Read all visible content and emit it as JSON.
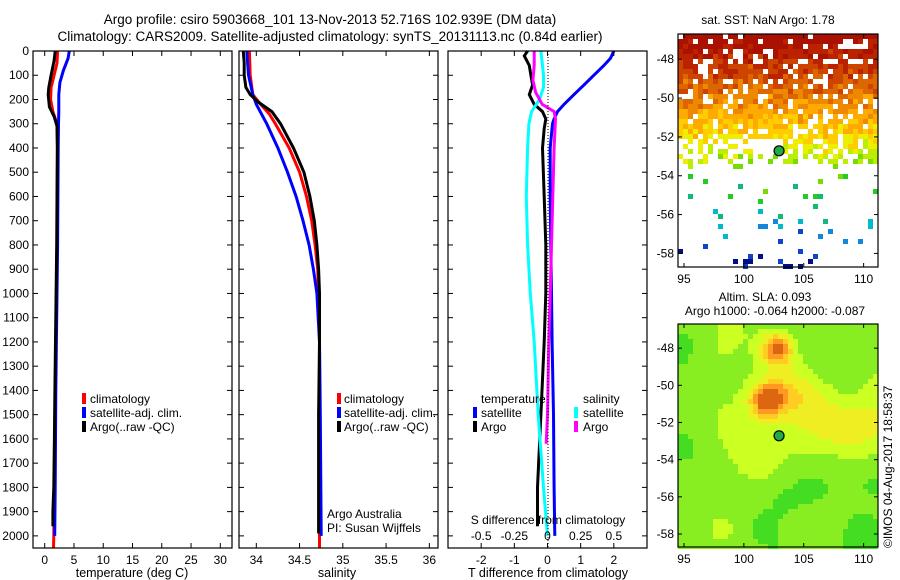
{
  "header": {
    "title_line1": "Argo profile: csiro 5903668_101 13-Nov-2013 52.716S 102.939E (DM data)",
    "title_line2": "Climatology: CARS2009. Satellite-adjusted climatology: synTS_20131113.nc (0.84d earlier)"
  },
  "colors": {
    "climatology": "#ff0000",
    "satellite_adj": "#0000ff",
    "argo": "#000000",
    "t_satellite": "#0000ff",
    "t_argo": "#000000",
    "s_satellite": "#00ffff",
    "s_argo": "#ff00ff"
  },
  "credits": {
    "line1": "Argo Australia",
    "line2": "PI: Susan Wijffels",
    "timestamp": "©IMOS 04-Aug-2017 18:58:37"
  },
  "chart_data": [
    {
      "type": "line",
      "id": "temperature",
      "title": "",
      "xlabel": "temperature (deg C)",
      "ylabel": "",
      "xlim": [
        -2,
        32
      ],
      "ylim": [
        0,
        2050
      ],
      "xticks": [
        0,
        5,
        10,
        15,
        20,
        25,
        30
      ],
      "yticks": [
        0,
        100,
        200,
        300,
        400,
        500,
        600,
        700,
        800,
        900,
        1000,
        1100,
        1200,
        1300,
        1400,
        1500,
        1600,
        1700,
        1800,
        1900,
        2000
      ],
      "legend": [
        "climatology",
        "satellite-adj. clim.",
        "Argo(..raw -QC)"
      ],
      "legend_position": "bottom-left",
      "series": [
        {
          "name": "climatology",
          "color": "#ff0000",
          "depth": [
            0,
            50,
            100,
            150,
            200,
            250,
            300,
            400,
            600,
            800,
            1000,
            1200,
            1400,
            1600,
            1800,
            2000,
            2050
          ],
          "values": [
            2.2,
            2.1,
            1.6,
            1.1,
            1.0,
            1.4,
            2.1,
            2.2,
            2.15,
            2.1,
            2.0,
            1.9,
            1.8,
            1.7,
            1.6,
            1.55,
            1.5
          ]
        },
        {
          "name": "satellite-adj. clim.",
          "color": "#0000ff",
          "depth": [
            0,
            30,
            80,
            130,
            180,
            250,
            300,
            400,
            600,
            800,
            1000,
            1200,
            1400,
            1600,
            1800,
            2000
          ],
          "values": [
            4.2,
            4.0,
            3.2,
            2.6,
            2.4,
            2.4,
            2.35,
            2.3,
            2.25,
            2.2,
            2.1,
            2.0,
            1.9,
            1.85,
            1.8,
            1.7
          ]
        },
        {
          "name": "Argo(..raw -QC)",
          "color": "#000000",
          "depth": [
            0,
            40,
            100,
            150,
            180,
            230,
            270,
            310,
            400,
            600,
            800,
            1000,
            1200,
            1400,
            1600,
            1800,
            1900,
            1960
          ],
          "values": [
            1.8,
            1.6,
            1.1,
            0.7,
            0.6,
            0.8,
            1.6,
            2.1,
            2.15,
            2.1,
            2.05,
            1.95,
            1.85,
            1.75,
            1.65,
            1.55,
            1.4,
            1.4
          ]
        }
      ]
    },
    {
      "type": "line",
      "id": "salinity",
      "xlabel": "salinity",
      "xlim": [
        33.8,
        36.1
      ],
      "ylim": [
        0,
        2050
      ],
      "xticks": [
        34,
        34.5,
        35,
        35.5,
        36
      ],
      "legend": [
        "climatology",
        "satellite-adj. clim.",
        "Argo(..raw -QC)"
      ],
      "legend_position": "center-right",
      "series": [
        {
          "name": "climatology",
          "color": "#ff0000",
          "depth": [
            0,
            100,
            180,
            220,
            260,
            300,
            400,
            500,
            600,
            700,
            800,
            900,
            1000,
            1200,
            1500,
            2000,
            2050
          ],
          "values": [
            33.92,
            33.93,
            33.96,
            34.05,
            34.15,
            34.22,
            34.38,
            34.5,
            34.58,
            34.64,
            34.68,
            34.71,
            34.72,
            34.73,
            34.73,
            34.73,
            34.73
          ]
        },
        {
          "name": "satellite-adj. clim.",
          "color": "#0000ff",
          "depth": [
            0,
            100,
            180,
            220,
            260,
            300,
            400,
            500,
            600,
            700,
            800,
            900,
            1000,
            1200,
            1500,
            2000
          ],
          "values": [
            33.89,
            33.91,
            33.96,
            34.0,
            34.06,
            34.12,
            34.25,
            34.36,
            34.46,
            34.54,
            34.61,
            34.66,
            34.7,
            34.73,
            34.74,
            34.75
          ]
        },
        {
          "name": "Argo(..raw -QC)",
          "color": "#000000",
          "depth": [
            0,
            50,
            100,
            150,
            180,
            210,
            250,
            300,
            400,
            500,
            600,
            700,
            800,
            900,
            1000,
            1200,
            1500,
            1900,
            1990
          ],
          "values": [
            33.85,
            33.86,
            33.86,
            33.88,
            33.93,
            34.02,
            34.18,
            34.28,
            34.43,
            34.55,
            34.62,
            34.67,
            34.7,
            34.72,
            34.73,
            34.73,
            34.72,
            34.72,
            34.72
          ]
        }
      ]
    },
    {
      "type": "line",
      "id": "difference",
      "xlabel": "T difference from climatology",
      "xlabel_top": "S difference from climatology",
      "xlim": [
        -3,
        3
      ],
      "xlim_salinity": [
        -0.75,
        0.75
      ],
      "ylim": [
        0,
        2050
      ],
      "xticks": [
        -2,
        -1,
        0,
        1,
        2
      ],
      "xticks_salinity": [
        -0.5,
        -0.25,
        0,
        0.25,
        0.5
      ],
      "legend_temperature_title": "temperature",
      "legend_salinity_title": "salinity",
      "legend": [
        "satellite",
        "Argo",
        "satellite",
        "Argo"
      ],
      "legend_position": "center",
      "series": [
        {
          "name": "T satellite",
          "color": "#0000ff",
          "axis": "T",
          "depth": [
            0,
            30,
            60,
            100,
            140,
            180,
            220,
            250,
            280,
            300,
            400,
            600,
            800,
            1000,
            1200,
            1500,
            1800,
            2000
          ],
          "values": [
            2.0,
            1.9,
            1.7,
            1.4,
            1.1,
            0.8,
            0.5,
            0.3,
            0.2,
            0.15,
            0.08,
            0.08,
            0.1,
            0.12,
            0.14,
            0.18,
            0.2,
            0.22
          ]
        },
        {
          "name": "T Argo",
          "color": "#000000",
          "axis": "T",
          "depth": [
            0,
            20,
            60,
            100,
            140,
            180,
            220,
            250,
            280,
            320,
            400,
            600,
            800,
            1000,
            1200,
            1500,
            1800,
            1960
          ],
          "values": [
            -0.6,
            -0.7,
            -0.55,
            -0.5,
            -0.45,
            -0.55,
            -0.4,
            -0.15,
            -0.05,
            -0.1,
            -0.15,
            -0.1,
            -0.05,
            -0.05,
            -0.1,
            -0.2,
            -0.3,
            -0.3
          ]
        },
        {
          "name": "S satellite",
          "color": "#00ffff",
          "axis": "S",
          "depth": [
            0,
            100,
            150,
            200,
            250,
            300,
            400,
            600,
            800,
            1000,
            1200,
            1500,
            1800,
            2000
          ],
          "values": [
            -0.05,
            -0.03,
            -0.03,
            -0.06,
            -0.12,
            -0.14,
            -0.15,
            -0.16,
            -0.15,
            -0.13,
            -0.1,
            -0.07,
            -0.03,
            0.0
          ]
        },
        {
          "name": "S Argo",
          "color": "#ff00ff",
          "axis": "S",
          "depth": [
            0,
            60,
            120,
            170,
            220,
            250,
            280,
            400,
            600,
            800,
            1000,
            1200,
            1500,
            1620
          ],
          "values": [
            -0.1,
            -0.1,
            -0.11,
            -0.09,
            -0.04,
            0.05,
            0.06,
            0.05,
            0.04,
            0.03,
            0.02,
            0.01,
            0.0,
            -0.01
          ]
        }
      ]
    },
    {
      "type": "heatmap",
      "id": "sst_map",
      "title": "sat. SST: NaN Argo: 1.78",
      "xlim": [
        94.5,
        111.2
      ],
      "ylim": [
        -58.7,
        -46.7
      ],
      "xticks": [
        95,
        100,
        105,
        110
      ],
      "yticks": [
        -48,
        -50,
        -52,
        -54,
        -56,
        -58
      ],
      "marker": {
        "lon": 102.939,
        "lat": -52.716
      }
    },
    {
      "type": "heatmap",
      "id": "sla_map",
      "title": "Altim. SLA: 0.093",
      "subtitle": "Argo h1000: -0.064 h2000: -0.087",
      "xlim": [
        94.5,
        111.2
      ],
      "ylim": [
        -58.7,
        -46.7
      ],
      "xticks": [
        95,
        100,
        105,
        110
      ],
      "yticks": [
        -48,
        -50,
        -52,
        -54,
        -56,
        -58
      ],
      "marker": {
        "lon": 102.939,
        "lat": -52.716
      }
    }
  ]
}
